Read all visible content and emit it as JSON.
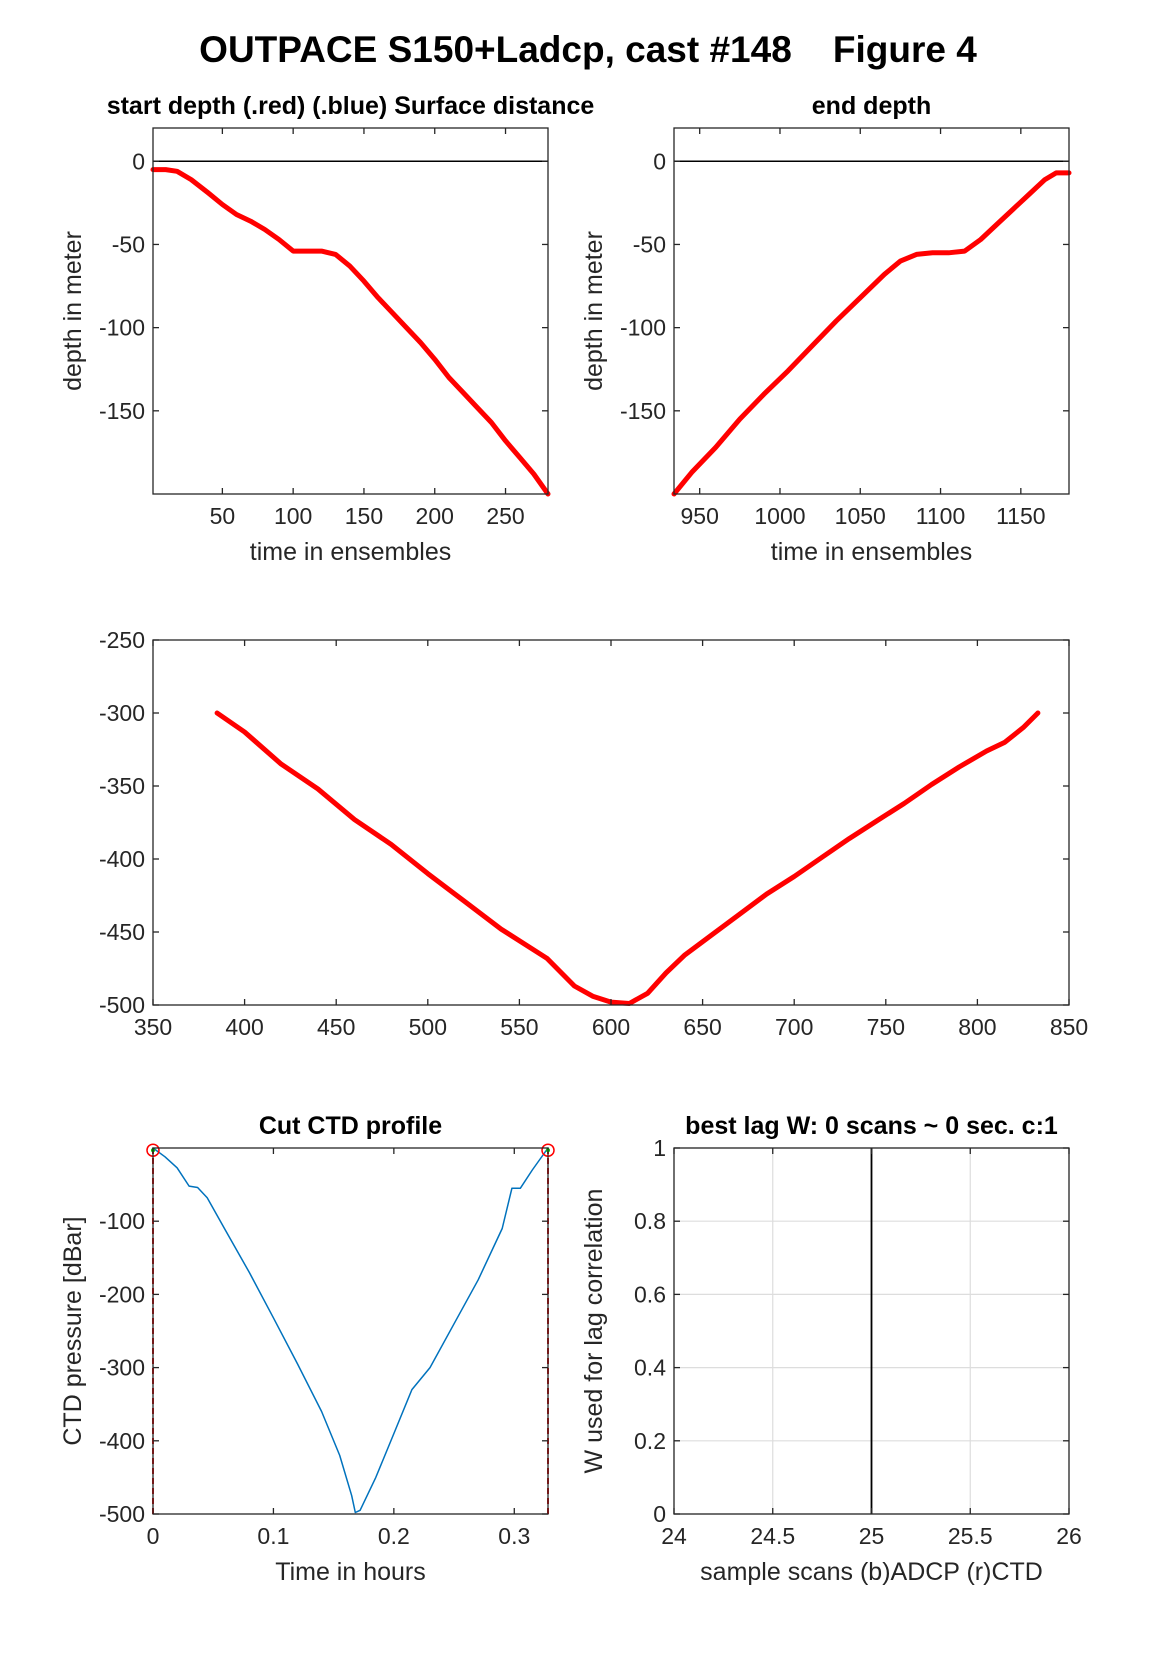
{
  "figure": {
    "title": "OUTPACE S150+Ladcp, cast #148    Figure 4"
  },
  "colors": {
    "red": "#ff0000",
    "blue": "#0072bd",
    "green": "#00cc00",
    "axis": "#262626",
    "grid": "#dddddd"
  },
  "chart_data": [
    {
      "id": "p1",
      "type": "line",
      "title": "start depth (.red) (.blue) Surface distance",
      "xlabel": "time in ensembles",
      "ylabel": "depth in meter",
      "xlim": [
        1,
        280
      ],
      "ylim": [
        -200,
        20
      ],
      "xticks": [
        50,
        100,
        150,
        200,
        250
      ],
      "yticks": [
        0,
        -50,
        -100,
        -150
      ],
      "zero_line": true,
      "series": [
        {
          "color": "red",
          "width": 5,
          "x": [
            1,
            10,
            18,
            28,
            40,
            50,
            60,
            70,
            80,
            90,
            100,
            110,
            120,
            130,
            140,
            150,
            160,
            170,
            180,
            190,
            200,
            210,
            220,
            230,
            240,
            250,
            260,
            270,
            280
          ],
          "y": [
            -5,
            -5,
            -6,
            -11,
            -19,
            -26,
            -32,
            -36,
            -41,
            -47,
            -54,
            -54,
            -54,
            -56,
            -63,
            -72,
            -82,
            -91,
            -100,
            -109,
            -119,
            -130,
            -139,
            -148,
            -157,
            -168,
            -178,
            -188,
            -200
          ]
        }
      ]
    },
    {
      "id": "p2",
      "type": "line",
      "title": "end depth",
      "xlabel": "time in ensembles",
      "ylabel": "depth in meter",
      "xlim": [
        934,
        1180
      ],
      "ylim": [
        -200,
        20
      ],
      "xticks": [
        950,
        1000,
        1050,
        1100,
        1150
      ],
      "yticks": [
        0,
        -50,
        -100,
        -150
      ],
      "zero_line": true,
      "series": [
        {
          "color": "red",
          "width": 5,
          "x": [
            934,
            945,
            960,
            975,
            990,
            1005,
            1020,
            1035,
            1050,
            1065,
            1075,
            1085,
            1095,
            1105,
            1115,
            1125,
            1135,
            1145,
            1155,
            1165,
            1172,
            1180
          ],
          "y": [
            -200,
            -187,
            -172,
            -155,
            -140,
            -126,
            -111,
            -96,
            -82,
            -68,
            -60,
            -56,
            -55,
            -55,
            -54,
            -47,
            -38,
            -29,
            -20,
            -11,
            -7,
            -7
          ]
        }
      ]
    },
    {
      "id": "p3",
      "type": "line",
      "title": "",
      "xlabel": "",
      "ylabel": "",
      "xlim": [
        350,
        850
      ],
      "ylim": [
        -500,
        -250
      ],
      "xticks": [
        350,
        400,
        450,
        500,
        550,
        600,
        650,
        700,
        750,
        800,
        850
      ],
      "yticks": [
        -250,
        -300,
        -350,
        -400,
        -450,
        -500
      ],
      "series": [
        {
          "color": "red",
          "width": 5,
          "x": [
            385,
            400,
            420,
            440,
            460,
            480,
            500,
            520,
            540,
            565,
            580,
            590,
            600,
            610,
            620,
            630,
            640,
            655,
            670,
            685,
            700,
            715,
            730,
            745,
            760,
            775,
            790,
            805,
            815,
            825,
            833
          ],
          "y": [
            -300,
            -313,
            -335,
            -352,
            -373,
            -390,
            -410,
            -429,
            -448,
            -468,
            -487,
            -494,
            -498,
            -499,
            -492,
            -478,
            -466,
            -452,
            -438,
            -424,
            -412,
            -399,
            -386,
            -374,
            -362,
            -349,
            -337,
            -326,
            -320,
            -310,
            -300
          ]
        }
      ]
    },
    {
      "id": "p4",
      "type": "line",
      "title": "Cut CTD profile",
      "xlabel": "Time in hours",
      "ylabel": "CTD pressure [dBar]",
      "xlim": [
        0,
        0.328
      ],
      "ylim": [
        -500,
        0
      ],
      "xticks": [
        0,
        0.1,
        0.2,
        0.3
      ],
      "xtick_labels": [
        "0",
        "0.1",
        "0.2",
        "0.3"
      ],
      "yticks": [
        -100,
        -200,
        -300,
        -400,
        -500
      ],
      "vlines": [
        0,
        0.328
      ],
      "markers": [
        [
          0,
          -3
        ],
        [
          0.328,
          -3
        ]
      ],
      "series": [
        {
          "color": "blue",
          "width": 1.5,
          "x": [
            0,
            0.01,
            0.02,
            0.03,
            0.037,
            0.045,
            0.06,
            0.08,
            0.1,
            0.12,
            0.14,
            0.155,
            0.165,
            0.168,
            0.172,
            0.185,
            0.2,
            0.215,
            0.23,
            0.25,
            0.27,
            0.29,
            0.298,
            0.305,
            0.315,
            0.328
          ],
          "y": [
            0,
            -12,
            -27,
            -52,
            -54,
            -68,
            -112,
            -170,
            -232,
            -295,
            -360,
            -420,
            -475,
            -498,
            -495,
            -450,
            -390,
            -330,
            -300,
            -240,
            -180,
            -110,
            -55,
            -55,
            -30,
            0
          ]
        }
      ]
    },
    {
      "id": "p5",
      "type": "line",
      "title": "best lag W: 0 scans ~ 0 sec.  c:1",
      "xlabel": "sample scans (b)ADCP (r)CTD",
      "ylabel": "W used for lag correlation",
      "xlim": [
        24,
        26
      ],
      "ylim": [
        0,
        1
      ],
      "xticks": [
        24,
        24.5,
        25,
        25.5,
        26
      ],
      "xtick_labels": [
        "24",
        "24.5",
        "25",
        "25.5",
        "26"
      ],
      "yticks": [
        0,
        0.2,
        0.4,
        0.6,
        0.8,
        1
      ],
      "ytick_labels": [
        "0",
        "0.2",
        "0.4",
        "0.6",
        "0.8",
        "1"
      ],
      "grid": true,
      "vline_at": 25
    }
  ]
}
